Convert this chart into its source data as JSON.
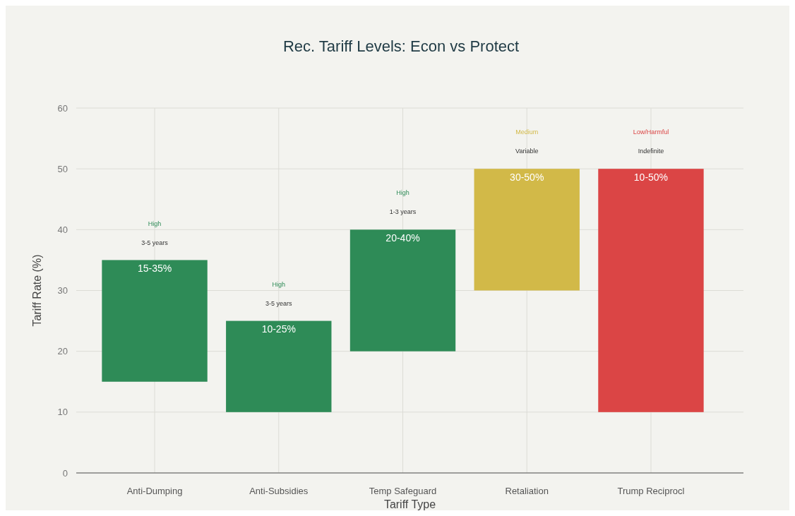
{
  "chart_data": {
    "type": "bar",
    "title": "Rec. Tariff Levels: Econ vs Protect",
    "xlabel": "Tariff Type",
    "ylabel": "Tariff Rate (%)",
    "categories": [
      "Anti-Dumping",
      "Anti-Subsidies",
      "Temp Safeguard",
      "Retaliation",
      "Trump Reciprocl"
    ],
    "base": [
      15,
      10,
      20,
      30,
      10
    ],
    "values": [
      20,
      15,
      20,
      20,
      40
    ],
    "colors": [
      "#2e8b57",
      "#2e8b57",
      "#2e8b57",
      "#d2b948",
      "#db4545"
    ],
    "ylim": [
      0,
      60
    ],
    "yticks": [
      0,
      10,
      20,
      30,
      40,
      50,
      60
    ],
    "grid": true,
    "annotations": [
      {
        "text": "15-35%",
        "x": "Anti-Dumping",
        "y": 35
      },
      {
        "text": "3-5 years",
        "x": "Anti-Dumping",
        "y": 35
      },
      {
        "text": "10-25%",
        "x": "Anti-Subsidies",
        "y": 25
      },
      {
        "text": "3-5 years",
        "x": "Anti-Subsidies",
        "y": 25
      },
      {
        "text": "20-40%",
        "x": "Temp Safeguard",
        "y": 40
      },
      {
        "text": "1-3 years",
        "x": "Temp Safeguard",
        "y": 40
      },
      {
        "text": "30-50%",
        "x": "Retaliation",
        "y": 50
      },
      {
        "text": "Variable",
        "x": "Retaliation",
        "y": 50
      },
      {
        "text": "10-50%",
        "x": "Trump Reciprocl",
        "y": 50
      },
      {
        "text": "Indefinite",
        "x": "Trump Reciprocl",
        "y": 50
      },
      "High",
      "High",
      "High",
      "Medium",
      "Low/Harmful"
    ]
  }
}
